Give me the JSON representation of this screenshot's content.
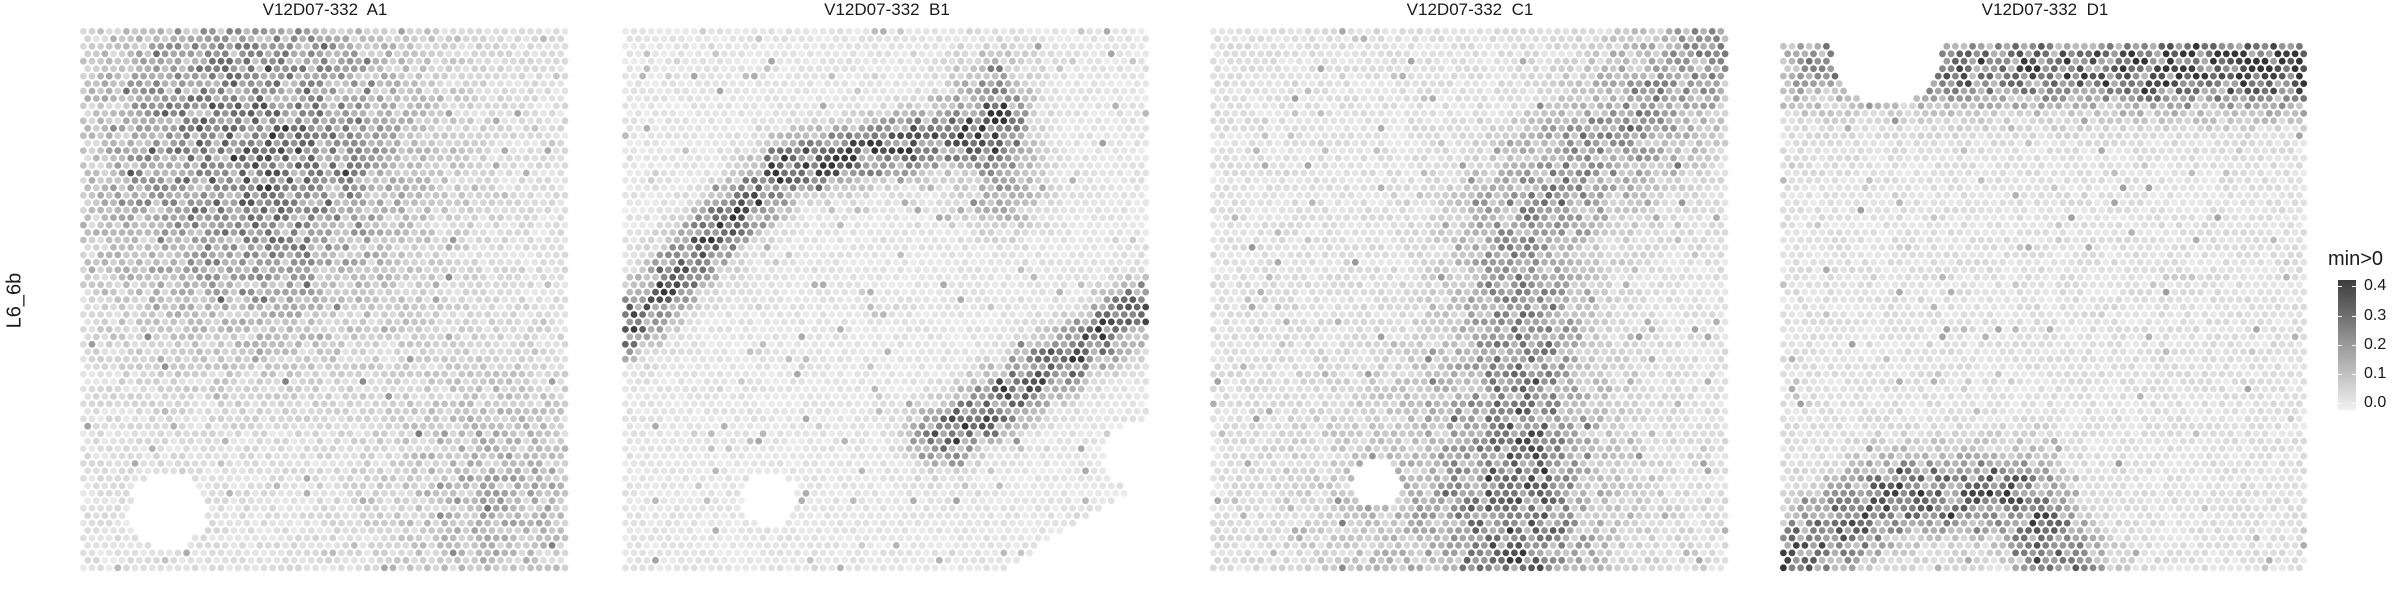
{
  "row_label": "L6_6b",
  "panels": [
    {
      "title": "V12D07-332  A1"
    },
    {
      "title": "V12D07-332  B1"
    },
    {
      "title": "V12D07-332  C1"
    },
    {
      "title": "V12D07-332  D1"
    }
  ],
  "legend": {
    "title": "min>0",
    "ticks": [
      "0.4",
      "0.3",
      "0.2",
      "0.1",
      "0.0"
    ],
    "range": [
      0,
      0.45
    ],
    "colors": {
      "high": "#3d3d3d",
      "low": "#f1f1f1"
    }
  }
}
